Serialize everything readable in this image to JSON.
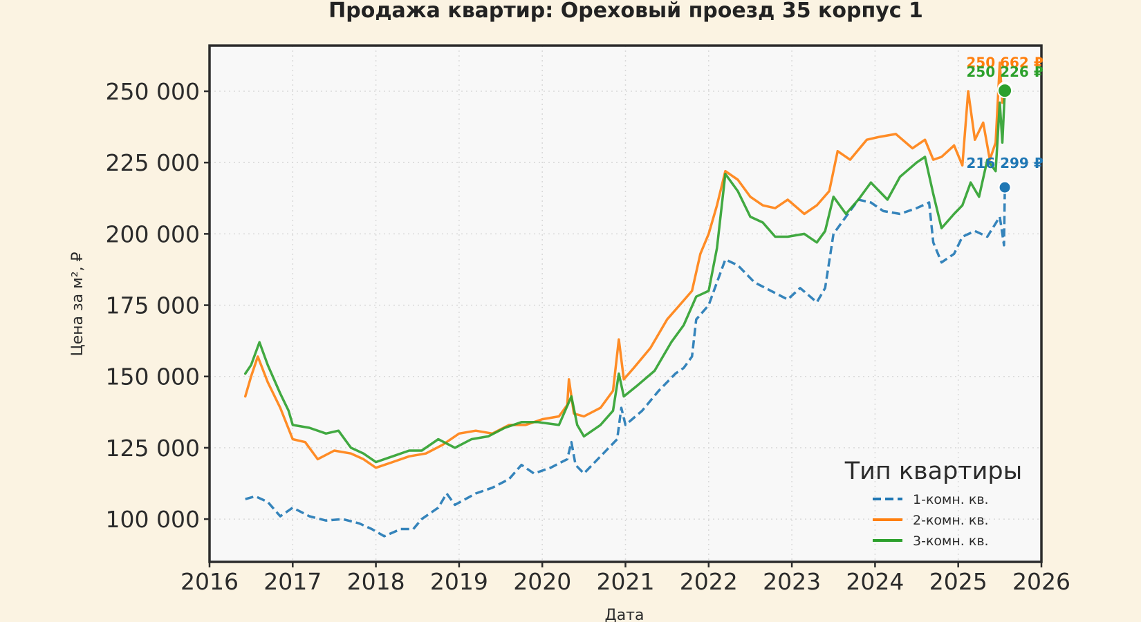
{
  "chart_data": {
    "type": "line",
    "title": "Продажа квартир: Ореховый проезд 35 корпус 1",
    "xlabel": "Дата",
    "ylabel": "Цена за м², ₽",
    "xlim": [
      2016,
      2026
    ],
    "ylim": [
      85000,
      266000
    ],
    "x_ticks": [
      "2016",
      "2017",
      "2018",
      "2019",
      "2020",
      "2021",
      "2022",
      "2023",
      "2024",
      "2025",
      "2026"
    ],
    "y_ticks": [
      "100 000",
      "125 000",
      "150 000",
      "175 000",
      "200 000",
      "225 000",
      "250 000"
    ],
    "grid": true,
    "legend": {
      "title": "Тип квартиры",
      "position": "lower-right"
    },
    "series": [
      {
        "name": "1-комн. кв.",
        "color": "#1f77b4",
        "dash": "dashed",
        "last_label": "216 299 ₽",
        "last_value": 216299,
        "points": [
          [
            2016.43,
            107000
          ],
          [
            2016.55,
            108000
          ],
          [
            2016.7,
            106000
          ],
          [
            2016.85,
            101000
          ],
          [
            2017.0,
            104000
          ],
          [
            2017.2,
            101000
          ],
          [
            2017.4,
            99500
          ],
          [
            2017.6,
            100000
          ],
          [
            2017.8,
            98500
          ],
          [
            2017.95,
            96500
          ],
          [
            2018.1,
            94000
          ],
          [
            2018.3,
            96500
          ],
          [
            2018.45,
            96500
          ],
          [
            2018.55,
            100000
          ],
          [
            2018.75,
            104000
          ],
          [
            2018.85,
            109000
          ],
          [
            2018.95,
            105000
          ],
          [
            2019.2,
            109000
          ],
          [
            2019.4,
            111000
          ],
          [
            2019.6,
            114000
          ],
          [
            2019.75,
            119000
          ],
          [
            2019.9,
            116000
          ],
          [
            2020.1,
            118000
          ],
          [
            2020.3,
            121000
          ],
          [
            2020.35,
            127000
          ],
          [
            2020.4,
            119000
          ],
          [
            2020.5,
            116000
          ],
          [
            2020.7,
            122000
          ],
          [
            2020.9,
            128000
          ],
          [
            2020.95,
            139000
          ],
          [
            2021.0,
            133000
          ],
          [
            2021.2,
            138000
          ],
          [
            2021.4,
            145000
          ],
          [
            2021.6,
            151000
          ],
          [
            2021.7,
            153000
          ],
          [
            2021.8,
            157000
          ],
          [
            2021.85,
            170000
          ],
          [
            2022.0,
            175000
          ],
          [
            2022.1,
            183000
          ],
          [
            2022.2,
            191000
          ],
          [
            2022.35,
            189000
          ],
          [
            2022.55,
            183000
          ],
          [
            2022.75,
            180000
          ],
          [
            2022.95,
            177000
          ],
          [
            2023.1,
            181000
          ],
          [
            2023.3,
            176000
          ],
          [
            2023.4,
            181000
          ],
          [
            2023.5,
            200000
          ],
          [
            2023.65,
            206000
          ],
          [
            2023.8,
            212000
          ],
          [
            2023.95,
            211000
          ],
          [
            2024.1,
            208000
          ],
          [
            2024.3,
            207000
          ],
          [
            2024.5,
            209000
          ],
          [
            2024.65,
            211000
          ],
          [
            2024.7,
            197000
          ],
          [
            2024.8,
            190000
          ],
          [
            2024.95,
            193000
          ],
          [
            2025.05,
            199000
          ],
          [
            2025.2,
            201000
          ],
          [
            2025.35,
            199000
          ],
          [
            2025.5,
            206000
          ],
          [
            2025.55,
            196000
          ],
          [
            2025.56,
            216299
          ]
        ]
      },
      {
        "name": "2-комн. кв.",
        "color": "#ff7f0e",
        "dash": "solid",
        "last_label": "250 662 ₽",
        "last_value": 250662,
        "points": [
          [
            2016.43,
            143000
          ],
          [
            2016.5,
            150000
          ],
          [
            2016.58,
            157000
          ],
          [
            2016.7,
            148000
          ],
          [
            2016.85,
            139000
          ],
          [
            2017.0,
            128000
          ],
          [
            2017.15,
            127000
          ],
          [
            2017.3,
            121000
          ],
          [
            2017.5,
            124000
          ],
          [
            2017.7,
            123000
          ],
          [
            2017.85,
            121000
          ],
          [
            2018.0,
            118000
          ],
          [
            2018.2,
            120000
          ],
          [
            2018.4,
            122000
          ],
          [
            2018.6,
            123000
          ],
          [
            2018.8,
            126000
          ],
          [
            2019.0,
            130000
          ],
          [
            2019.2,
            131000
          ],
          [
            2019.4,
            130000
          ],
          [
            2019.6,
            133000
          ],
          [
            2019.8,
            133000
          ],
          [
            2020.0,
            135000
          ],
          [
            2020.2,
            136000
          ],
          [
            2020.3,
            140000
          ],
          [
            2020.32,
            149000
          ],
          [
            2020.38,
            137000
          ],
          [
            2020.5,
            136000
          ],
          [
            2020.7,
            139000
          ],
          [
            2020.85,
            145000
          ],
          [
            2020.92,
            163000
          ],
          [
            2020.98,
            149000
          ],
          [
            2021.1,
            153000
          ],
          [
            2021.3,
            160000
          ],
          [
            2021.5,
            170000
          ],
          [
            2021.65,
            175000
          ],
          [
            2021.8,
            180000
          ],
          [
            2021.9,
            193000
          ],
          [
            2022.0,
            200000
          ],
          [
            2022.1,
            210000
          ],
          [
            2022.2,
            222000
          ],
          [
            2022.35,
            219000
          ],
          [
            2022.5,
            213000
          ],
          [
            2022.65,
            210000
          ],
          [
            2022.8,
            209000
          ],
          [
            2022.95,
            212000
          ],
          [
            2023.15,
            207000
          ],
          [
            2023.3,
            210000
          ],
          [
            2023.45,
            215000
          ],
          [
            2023.55,
            229000
          ],
          [
            2023.7,
            226000
          ],
          [
            2023.9,
            233000
          ],
          [
            2024.05,
            234000
          ],
          [
            2024.25,
            235000
          ],
          [
            2024.45,
            230000
          ],
          [
            2024.6,
            233000
          ],
          [
            2024.7,
            226000
          ],
          [
            2024.8,
            227000
          ],
          [
            2024.95,
            231000
          ],
          [
            2025.05,
            224000
          ],
          [
            2025.12,
            250000
          ],
          [
            2025.2,
            233000
          ],
          [
            2025.3,
            239000
          ],
          [
            2025.38,
            226000
          ],
          [
            2025.45,
            232000
          ],
          [
            2025.5,
            260000
          ],
          [
            2025.53,
            246000
          ],
          [
            2025.56,
            250662
          ]
        ]
      },
      {
        "name": "3-комн. кв.",
        "color": "#2ca02c",
        "dash": "solid",
        "last_label": "250 226 ₽",
        "last_value": 250226,
        "points": [
          [
            2016.43,
            151000
          ],
          [
            2016.5,
            154000
          ],
          [
            2016.6,
            162000
          ],
          [
            2016.7,
            154000
          ],
          [
            2016.85,
            144000
          ],
          [
            2016.95,
            138000
          ],
          [
            2017.0,
            133000
          ],
          [
            2017.2,
            132000
          ],
          [
            2017.4,
            130000
          ],
          [
            2017.55,
            131000
          ],
          [
            2017.7,
            125000
          ],
          [
            2017.85,
            123000
          ],
          [
            2018.0,
            120000
          ],
          [
            2018.2,
            122000
          ],
          [
            2018.4,
            124000
          ],
          [
            2018.55,
            124000
          ],
          [
            2018.75,
            128000
          ],
          [
            2018.95,
            125000
          ],
          [
            2019.15,
            128000
          ],
          [
            2019.35,
            129000
          ],
          [
            2019.55,
            132000
          ],
          [
            2019.75,
            134000
          ],
          [
            2019.95,
            134000
          ],
          [
            2020.2,
            133000
          ],
          [
            2020.35,
            143000
          ],
          [
            2020.42,
            133000
          ],
          [
            2020.5,
            129000
          ],
          [
            2020.7,
            133000
          ],
          [
            2020.85,
            138000
          ],
          [
            2020.92,
            151000
          ],
          [
            2020.98,
            143000
          ],
          [
            2021.15,
            147000
          ],
          [
            2021.35,
            152000
          ],
          [
            2021.55,
            162000
          ],
          [
            2021.7,
            168000
          ],
          [
            2021.85,
            178000
          ],
          [
            2022.0,
            180000
          ],
          [
            2022.1,
            195000
          ],
          [
            2022.2,
            221000
          ],
          [
            2022.35,
            215000
          ],
          [
            2022.5,
            206000
          ],
          [
            2022.65,
            204000
          ],
          [
            2022.8,
            199000
          ],
          [
            2022.95,
            199000
          ],
          [
            2023.15,
            200000
          ],
          [
            2023.3,
            197000
          ],
          [
            2023.4,
            201000
          ],
          [
            2023.5,
            213000
          ],
          [
            2023.65,
            207000
          ],
          [
            2023.8,
            212000
          ],
          [
            2023.95,
            218000
          ],
          [
            2024.15,
            212000
          ],
          [
            2024.3,
            220000
          ],
          [
            2024.5,
            225000
          ],
          [
            2024.6,
            227000
          ],
          [
            2024.7,
            214000
          ],
          [
            2024.8,
            202000
          ],
          [
            2024.95,
            207000
          ],
          [
            2025.05,
            210000
          ],
          [
            2025.15,
            218000
          ],
          [
            2025.25,
            213000
          ],
          [
            2025.35,
            226000
          ],
          [
            2025.45,
            222000
          ],
          [
            2025.5,
            246000
          ],
          [
            2025.53,
            232000
          ],
          [
            2025.56,
            250226
          ]
        ]
      }
    ]
  }
}
